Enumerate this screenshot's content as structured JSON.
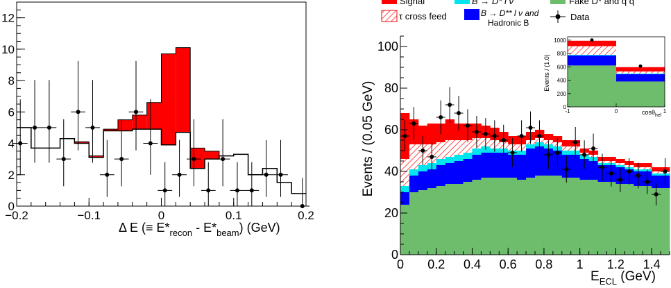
{
  "chart_data": [
    {
      "type": "histogram",
      "xlabel_main": "Δ E (≡ E*",
      "xlabel_sub1": "recon",
      "xlabel_mid": " - E*",
      "xlabel_sub2": "beam",
      "xlabel_end": ") (GeV)",
      "ylabel": "",
      "xlim": [
        -0.2,
        0.2
      ],
      "ylim": [
        0,
        13
      ],
      "x_ticks": [
        -0.2,
        -0.1,
        0,
        0.1,
        0.2
      ],
      "x_tick_labels": [
        "−0.2",
        "−0.1",
        "0",
        "0.1",
        "0.2"
      ],
      "y_ticks": [
        0,
        2,
        4,
        6,
        8,
        10,
        12
      ],
      "y_tick_labels": [
        "0",
        "2",
        "4",
        "6",
        "8",
        "10",
        "12"
      ],
      "bin_width": 0.02,
      "bin_edges_start": -0.2,
      "background": [
        5.0,
        3.7,
        3.7,
        4.3,
        4.0,
        3.1,
        4.8,
        4.8,
        4.9,
        4.9,
        3.9,
        4.7,
        2.4,
        3.0,
        3.2,
        3.3,
        2.0,
        2.4,
        1.5,
        0.8
      ],
      "total": [
        5.0,
        3.7,
        3.7,
        4.3,
        4.1,
        3.2,
        4.9,
        5.5,
        5.8,
        6.6,
        9.7,
        10.1,
        3.7,
        3.5,
        3.2,
        3.3,
        2.0,
        2.4,
        1.5,
        0.8
      ],
      "data_x": [
        -0.195,
        -0.175,
        -0.155,
        -0.135,
        -0.115,
        -0.095,
        -0.075,
        -0.055,
        -0.035,
        -0.015,
        0.005,
        0.025,
        0.045,
        0.065,
        0.085,
        0.105,
        0.125,
        0.145,
        0.165,
        0.195
      ],
      "data_y": [
        4,
        5,
        5,
        3,
        6,
        5,
        2,
        3,
        6,
        4,
        1,
        2,
        3,
        1,
        3,
        1,
        1,
        2,
        2,
        0
      ],
      "colors": {
        "signal": "#ff0000",
        "outline": "#000000"
      }
    },
    {
      "type": "stacked-histogram",
      "ylabel": "Events / (0.05 GeV)",
      "xlabel": "E",
      "xlabel_sub": "ECL",
      "xlabel_unit": " (GeV)",
      "xlim": [
        0,
        1.5
      ],
      "ylim": [
        0,
        105
      ],
      "x_ticks": [
        0,
        0.2,
        0.4,
        0.6,
        0.8,
        1.0,
        1.2,
        1.4
      ],
      "x_tick_labels": [
        "0",
        "0.2",
        "0.4",
        "0.6",
        "0.8",
        "1",
        "1.2",
        "1.4"
      ],
      "y_ticks": [
        0,
        20,
        40,
        60,
        80,
        100
      ],
      "y_tick_labels": [
        "0",
        "20",
        "40",
        "60",
        "80",
        "100"
      ],
      "bin_width": 0.05,
      "components": {
        "green": [
          24,
          30,
          31,
          32,
          33,
          34,
          34,
          35,
          36,
          37,
          37,
          37,
          37,
          36,
          37,
          38,
          38,
          38,
          37,
          37,
          36,
          36,
          35,
          35,
          34,
          34,
          33,
          33,
          32,
          32
        ],
        "blue": [
          6,
          8,
          9,
          9,
          10,
          10,
          11,
          11,
          12,
          12,
          12,
          12,
          11,
          12,
          14,
          14,
          13,
          12,
          11,
          11,
          10,
          9,
          8,
          8,
          8,
          7,
          7,
          7,
          6,
          6
        ],
        "cyan": [
          3,
          3,
          3,
          3,
          3,
          3,
          3,
          3,
          3,
          3,
          2,
          2,
          2,
          2,
          2,
          2,
          2,
          2,
          2,
          2,
          2,
          2,
          1,
          1,
          1,
          1,
          1,
          1,
          1,
          1
        ],
        "hatched": [
          13,
          12,
          10,
          9,
          8,
          8,
          7,
          6,
          5,
          4,
          4,
          3,
          3,
          3,
          2,
          2,
          2,
          2,
          2,
          2,
          1,
          1,
          1,
          1,
          1,
          1,
          1,
          1,
          1,
          1
        ],
        "red": [
          22,
          12,
          9,
          10,
          9,
          10,
          8,
          8,
          7,
          6,
          6,
          5,
          4,
          4,
          4,
          4,
          3,
          3,
          3,
          3,
          2,
          2,
          2,
          2,
          2,
          2,
          2,
          2,
          2,
          2
        ]
      },
      "data_x": [
        0.025,
        0.075,
        0.125,
        0.175,
        0.225,
        0.275,
        0.325,
        0.375,
        0.425,
        0.475,
        0.525,
        0.575,
        0.625,
        0.675,
        0.725,
        0.775,
        0.825,
        0.875,
        0.925,
        0.975,
        1.025,
        1.075,
        1.125,
        1.175,
        1.225,
        1.275,
        1.325,
        1.375,
        1.425,
        1.475
      ],
      "data_y": [
        57,
        63,
        50,
        47,
        66,
        72,
        68,
        62,
        59,
        58,
        57,
        55,
        49,
        57,
        61,
        57,
        48,
        49,
        41,
        54,
        48,
        51,
        42,
        39,
        36,
        40,
        38,
        35,
        29,
        40
      ],
      "legend": [
        {
          "kind": "solid",
          "color": "#ff0000",
          "label": "Signal"
        },
        {
          "kind": "solid",
          "color": "#00e5ee",
          "label": "B → D* l ν"
        },
        {
          "kind": "solid",
          "color": "#6dbd6d",
          "label": "Fake D* and q q"
        },
        {
          "kind": "hatch",
          "color": "#ff0000",
          "label": "τ cross feed"
        },
        {
          "kind": "solid",
          "color": "#0000ff",
          "label": "B → D** l ν and"
        },
        {
          "kind": "line",
          "color": "#000000",
          "label": "Hadronic B"
        },
        {
          "kind": "marker",
          "color": "#000000",
          "label": "Data"
        }
      ],
      "legend_position": "top",
      "colors": {
        "red": "#ff0000",
        "blue": "#0000ff",
        "cyan": "#00e5ee",
        "green": "#6dbd6d",
        "hatch": "#ff0000"
      },
      "inset": {
        "type": "stacked-histogram",
        "ylabel": "Events / (1.0)",
        "xlabel": "cosθ",
        "xlabel_sub": "hel",
        "xlim": [
          -1,
          1
        ],
        "ylim": [
          0,
          1050
        ],
        "x_ticks": [
          -1,
          0,
          1
        ],
        "x_tick_labels": [
          "-1",
          "0",
          "1"
        ],
        "y_ticks": [
          0,
          200,
          400,
          600,
          800,
          1000
        ],
        "y_tick_labels": [
          "0",
          "200",
          "400",
          "600",
          "800",
          "1000"
        ],
        "bins": [
          [
            -1,
            0
          ],
          [
            0,
            1
          ]
        ],
        "green": [
          620,
          380
        ],
        "blue": [
          150,
          110
        ],
        "cyan": [
          10,
          10
        ],
        "hatched": [
          130,
          30
        ],
        "red": [
          80,
          65
        ],
        "data_x": [
          -0.5,
          0.5
        ],
        "data_y": [
          1000,
          610
        ]
      }
    }
  ]
}
